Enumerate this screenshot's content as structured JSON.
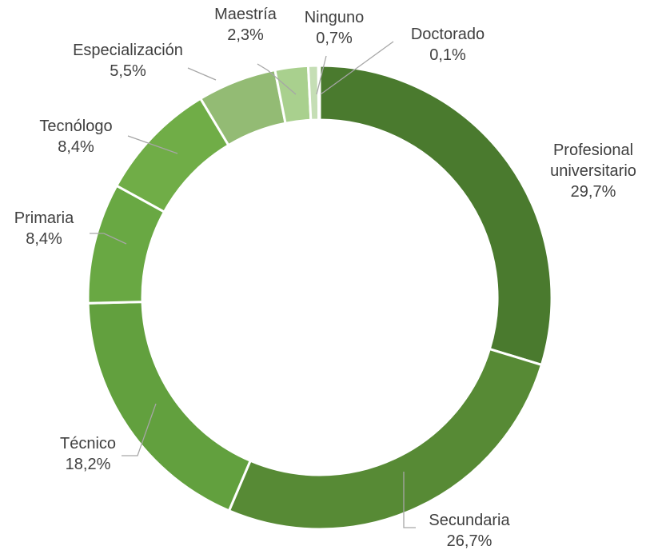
{
  "chart_data": {
    "type": "donut",
    "categories": [
      "Profesional universitario",
      "Secundaria",
      "Técnico",
      "Primaria",
      "Tecnólogo",
      "Especialización",
      "Maestría",
      "Ninguno",
      "Doctorado"
    ],
    "values": [
      29.7,
      26.7,
      18.2,
      8.4,
      8.4,
      5.5,
      2.3,
      0.7,
      0.1
    ],
    "value_labels": [
      "29,7%",
      "26,7%",
      "18,2%",
      "8,4%",
      "8,4%",
      "5,5%",
      "2,3%",
      "0,7%",
      "0,1%"
    ],
    "colors": [
      "#4a7a2e",
      "#578a35",
      "#62a03e",
      "#69a843",
      "#70ad47",
      "#93bb74",
      "#a9d08e",
      "#c5deb5",
      "#d5e8cb"
    ]
  }
}
